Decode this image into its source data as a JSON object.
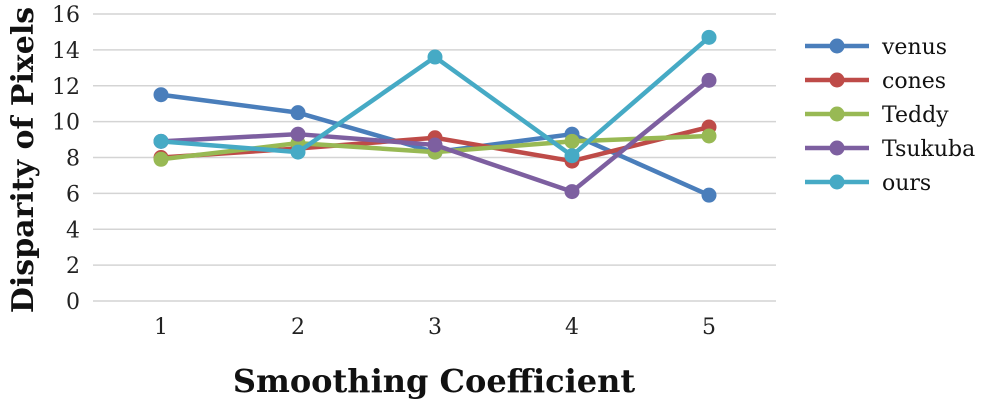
{
  "chart_data": {
    "type": "line",
    "title": "",
    "xlabel": "Smoothing Coefficient",
    "ylabel": "Disparity of Pixels",
    "categories": [
      "1",
      "2",
      "3",
      "4",
      "5"
    ],
    "ylim": [
      0,
      16
    ],
    "yticks": [
      "0",
      "2",
      "4",
      "6",
      "8",
      "10",
      "12",
      "14",
      "16"
    ],
    "grid": true,
    "legend_position": "right",
    "series": [
      {
        "name": "venus",
        "color": "#4a7ebb",
        "values": [
          11.5,
          10.5,
          8.3,
          9.3,
          5.9
        ]
      },
      {
        "name": "cones",
        "color": "#be4b48",
        "values": [
          8.0,
          8.5,
          9.1,
          7.8,
          9.7
        ]
      },
      {
        "name": "Teddy",
        "color": "#98b954",
        "values": [
          7.9,
          8.8,
          8.3,
          8.9,
          9.2
        ]
      },
      {
        "name": "Tsukuba",
        "color": "#7d5fa0",
        "values": [
          8.9,
          9.3,
          8.7,
          6.1,
          12.3
        ]
      },
      {
        "name": "ours",
        "color": "#46aac5",
        "values": [
          8.9,
          8.3,
          13.6,
          8.1,
          14.7
        ]
      }
    ]
  }
}
